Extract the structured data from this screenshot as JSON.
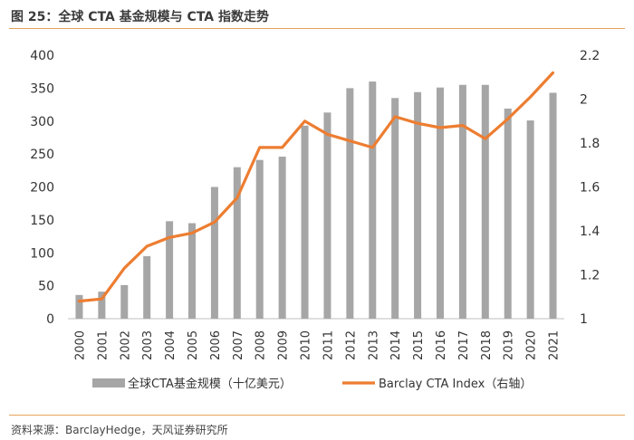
{
  "header": {
    "title": "图 25：全球 CTA 基金规模与 CTA 指数走势"
  },
  "footer": {
    "source": "资料来源：BarclayHedge，天风证券研究所"
  },
  "colors": {
    "bar": "#a6a6a6",
    "line": "#ed7d31",
    "rule": "#e8a35a",
    "axis_text": "#333333"
  },
  "chart_data": {
    "type": "bar+line",
    "title": "全球 CTA 基金规模与 CTA 指数走势",
    "categories": [
      "2000",
      "2001",
      "2002",
      "2003",
      "2004",
      "2005",
      "2006",
      "2007",
      "2008",
      "2009",
      "2010",
      "2011",
      "2012",
      "2013",
      "2014",
      "2015",
      "2016",
      "2017",
      "2018",
      "2019",
      "2020",
      "2021"
    ],
    "series": [
      {
        "name": "全球CTA基金规模（十亿美元）",
        "type": "bar",
        "axis": "left",
        "values": [
          36,
          41,
          51,
          95,
          148,
          145,
          200,
          230,
          241,
          246,
          293,
          313,
          350,
          360,
          335,
          344,
          351,
          355,
          355,
          319,
          301,
          343
        ]
      },
      {
        "name": "Barclay CTA Index（右轴）",
        "type": "line",
        "axis": "right",
        "values": [
          1.08,
          1.09,
          1.23,
          1.33,
          1.37,
          1.39,
          1.44,
          1.55,
          1.78,
          1.78,
          1.9,
          1.84,
          1.81,
          1.78,
          1.92,
          1.89,
          1.87,
          1.88,
          1.82,
          1.91,
          2.01,
          2.12
        ]
      }
    ],
    "y_left": {
      "min": 0,
      "max": 400,
      "ticks": [
        "0",
        "50",
        "100",
        "150",
        "200",
        "250",
        "300",
        "350",
        "400"
      ]
    },
    "y_right": {
      "min": 1,
      "max": 2.2,
      "ticks": [
        "1",
        "1.2",
        "1.4",
        "1.6",
        "1.8",
        "2",
        "2.2"
      ]
    },
    "legend_position": "bottom",
    "gridlines": false
  }
}
